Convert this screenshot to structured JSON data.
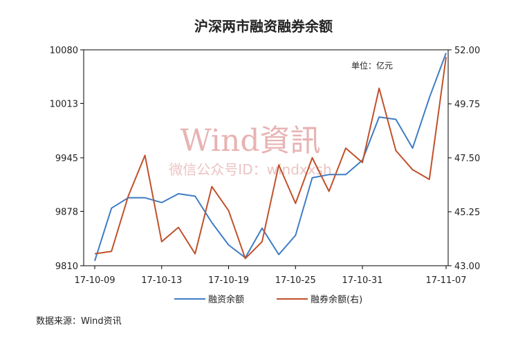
{
  "chart_data": {
    "type": "line",
    "title": "沪深两市融资融券余额",
    "unit_label": "单位：亿元",
    "source": "数据来源：Wind资讯",
    "watermark": {
      "brand": "Wind資訊",
      "sub": "微信公众号ID：windxxsh"
    },
    "x_tick_labels": [
      "17-10-09",
      "17-10-13",
      "17-10-19",
      "17-10-25",
      "17-10-31",
      "17-11-07"
    ],
    "x_tick_indices": [
      0,
      4,
      8,
      12,
      16,
      21
    ],
    "left_axis": {
      "ylim": [
        9810,
        10080
      ],
      "ticks": [
        "9810",
        "9878",
        "9945",
        "10013",
        "10080"
      ]
    },
    "right_axis": {
      "ylim": [
        43.0,
        52.0
      ],
      "ticks": [
        "43.00",
        "45.25",
        "47.50",
        "49.75",
        "52.00"
      ]
    },
    "series": [
      {
        "name": "融资余额",
        "axis": "left",
        "color": "#3e7cc4",
        "values": [
          9816,
          9882,
          9895,
          9895,
          9889,
          9900,
          9897,
          9864,
          9836,
          9820,
          9857,
          9824,
          9848,
          9920,
          9924,
          9924,
          9942,
          9996,
          9993,
          9957,
          10020,
          10076
        ]
      },
      {
        "name": "融券余额(右)",
        "axis": "right",
        "color": "#c0502a",
        "values": [
          43.5,
          43.6,
          45.9,
          47.6,
          44.0,
          44.6,
          43.5,
          46.3,
          45.3,
          43.3,
          44.0,
          47.2,
          45.6,
          47.5,
          46.1,
          47.9,
          47.3,
          50.4,
          47.8,
          47.0,
          46.6,
          51.7
        ]
      }
    ],
    "grid": false,
    "legend_position": "bottom"
  }
}
